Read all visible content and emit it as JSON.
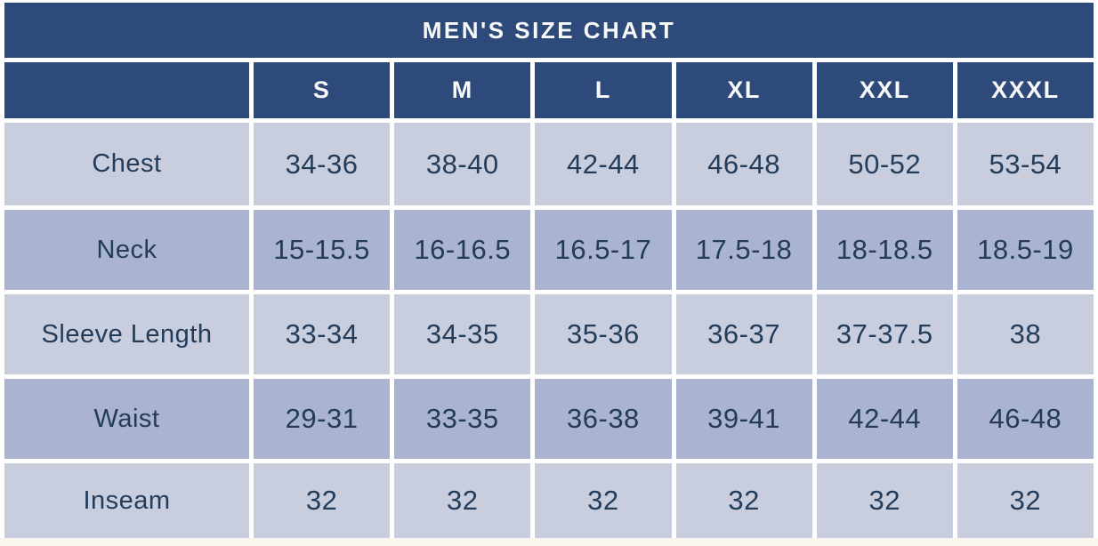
{
  "table": {
    "title": "MEN'S SIZE CHART",
    "columns": [
      "S",
      "M",
      "L",
      "XL",
      "XXL",
      "XXXL"
    ],
    "rows": [
      {
        "label": "Chest",
        "values": [
          "34-36",
          "38-40",
          "42-44",
          "46-48",
          "50-52",
          "53-54"
        ]
      },
      {
        "label": "Neck",
        "values": [
          "15-15.5",
          "16-16.5",
          "16.5-17",
          "17.5-18",
          "18-18.5",
          "18.5-19"
        ]
      },
      {
        "label": "Sleeve Length",
        "values": [
          "33-34",
          "34-35",
          "35-36",
          "36-37",
          "37-37.5",
          "38"
        ]
      },
      {
        "label": "Waist",
        "values": [
          "29-31",
          "33-35",
          "36-38",
          "39-41",
          "42-44",
          "46-48"
        ]
      },
      {
        "label": "Inseam",
        "values": [
          "32",
          "32",
          "32",
          "32",
          "32",
          "32"
        ]
      }
    ]
  },
  "chart_data": {
    "type": "table",
    "title": "MEN'S SIZE CHART",
    "columns": [
      "S",
      "M",
      "L",
      "XL",
      "XXL",
      "XXXL"
    ],
    "row_labels": [
      "Chest",
      "Neck",
      "Sleeve Length",
      "Waist",
      "Inseam"
    ],
    "cells": [
      [
        "34-36",
        "38-40",
        "42-44",
        "46-48",
        "50-52",
        "53-54"
      ],
      [
        "15-15.5",
        "16-16.5",
        "16.5-17",
        "17.5-18",
        "18-18.5",
        "18.5-19"
      ],
      [
        "33-34",
        "34-35",
        "35-36",
        "36-37",
        "37-37.5",
        "38"
      ],
      [
        "29-31",
        "33-35",
        "36-38",
        "39-41",
        "42-44",
        "46-48"
      ],
      [
        "32",
        "32",
        "32",
        "32",
        "32",
        "32"
      ]
    ],
    "layout_hints": {
      "header_style": "dark navy band with white bold text",
      "row_striping": [
        "light",
        "dark",
        "light",
        "dark",
        "light"
      ]
    }
  },
  "colors": {
    "header_navy": "#2d4a7b",
    "row_light": "#c9cedf",
    "row_dark": "#aab3cf",
    "cell_gap_white": "#ffffff",
    "page_cream": "#fbf6ed",
    "text_navy": "#233c59",
    "header_text": "#f9f9f9"
  }
}
